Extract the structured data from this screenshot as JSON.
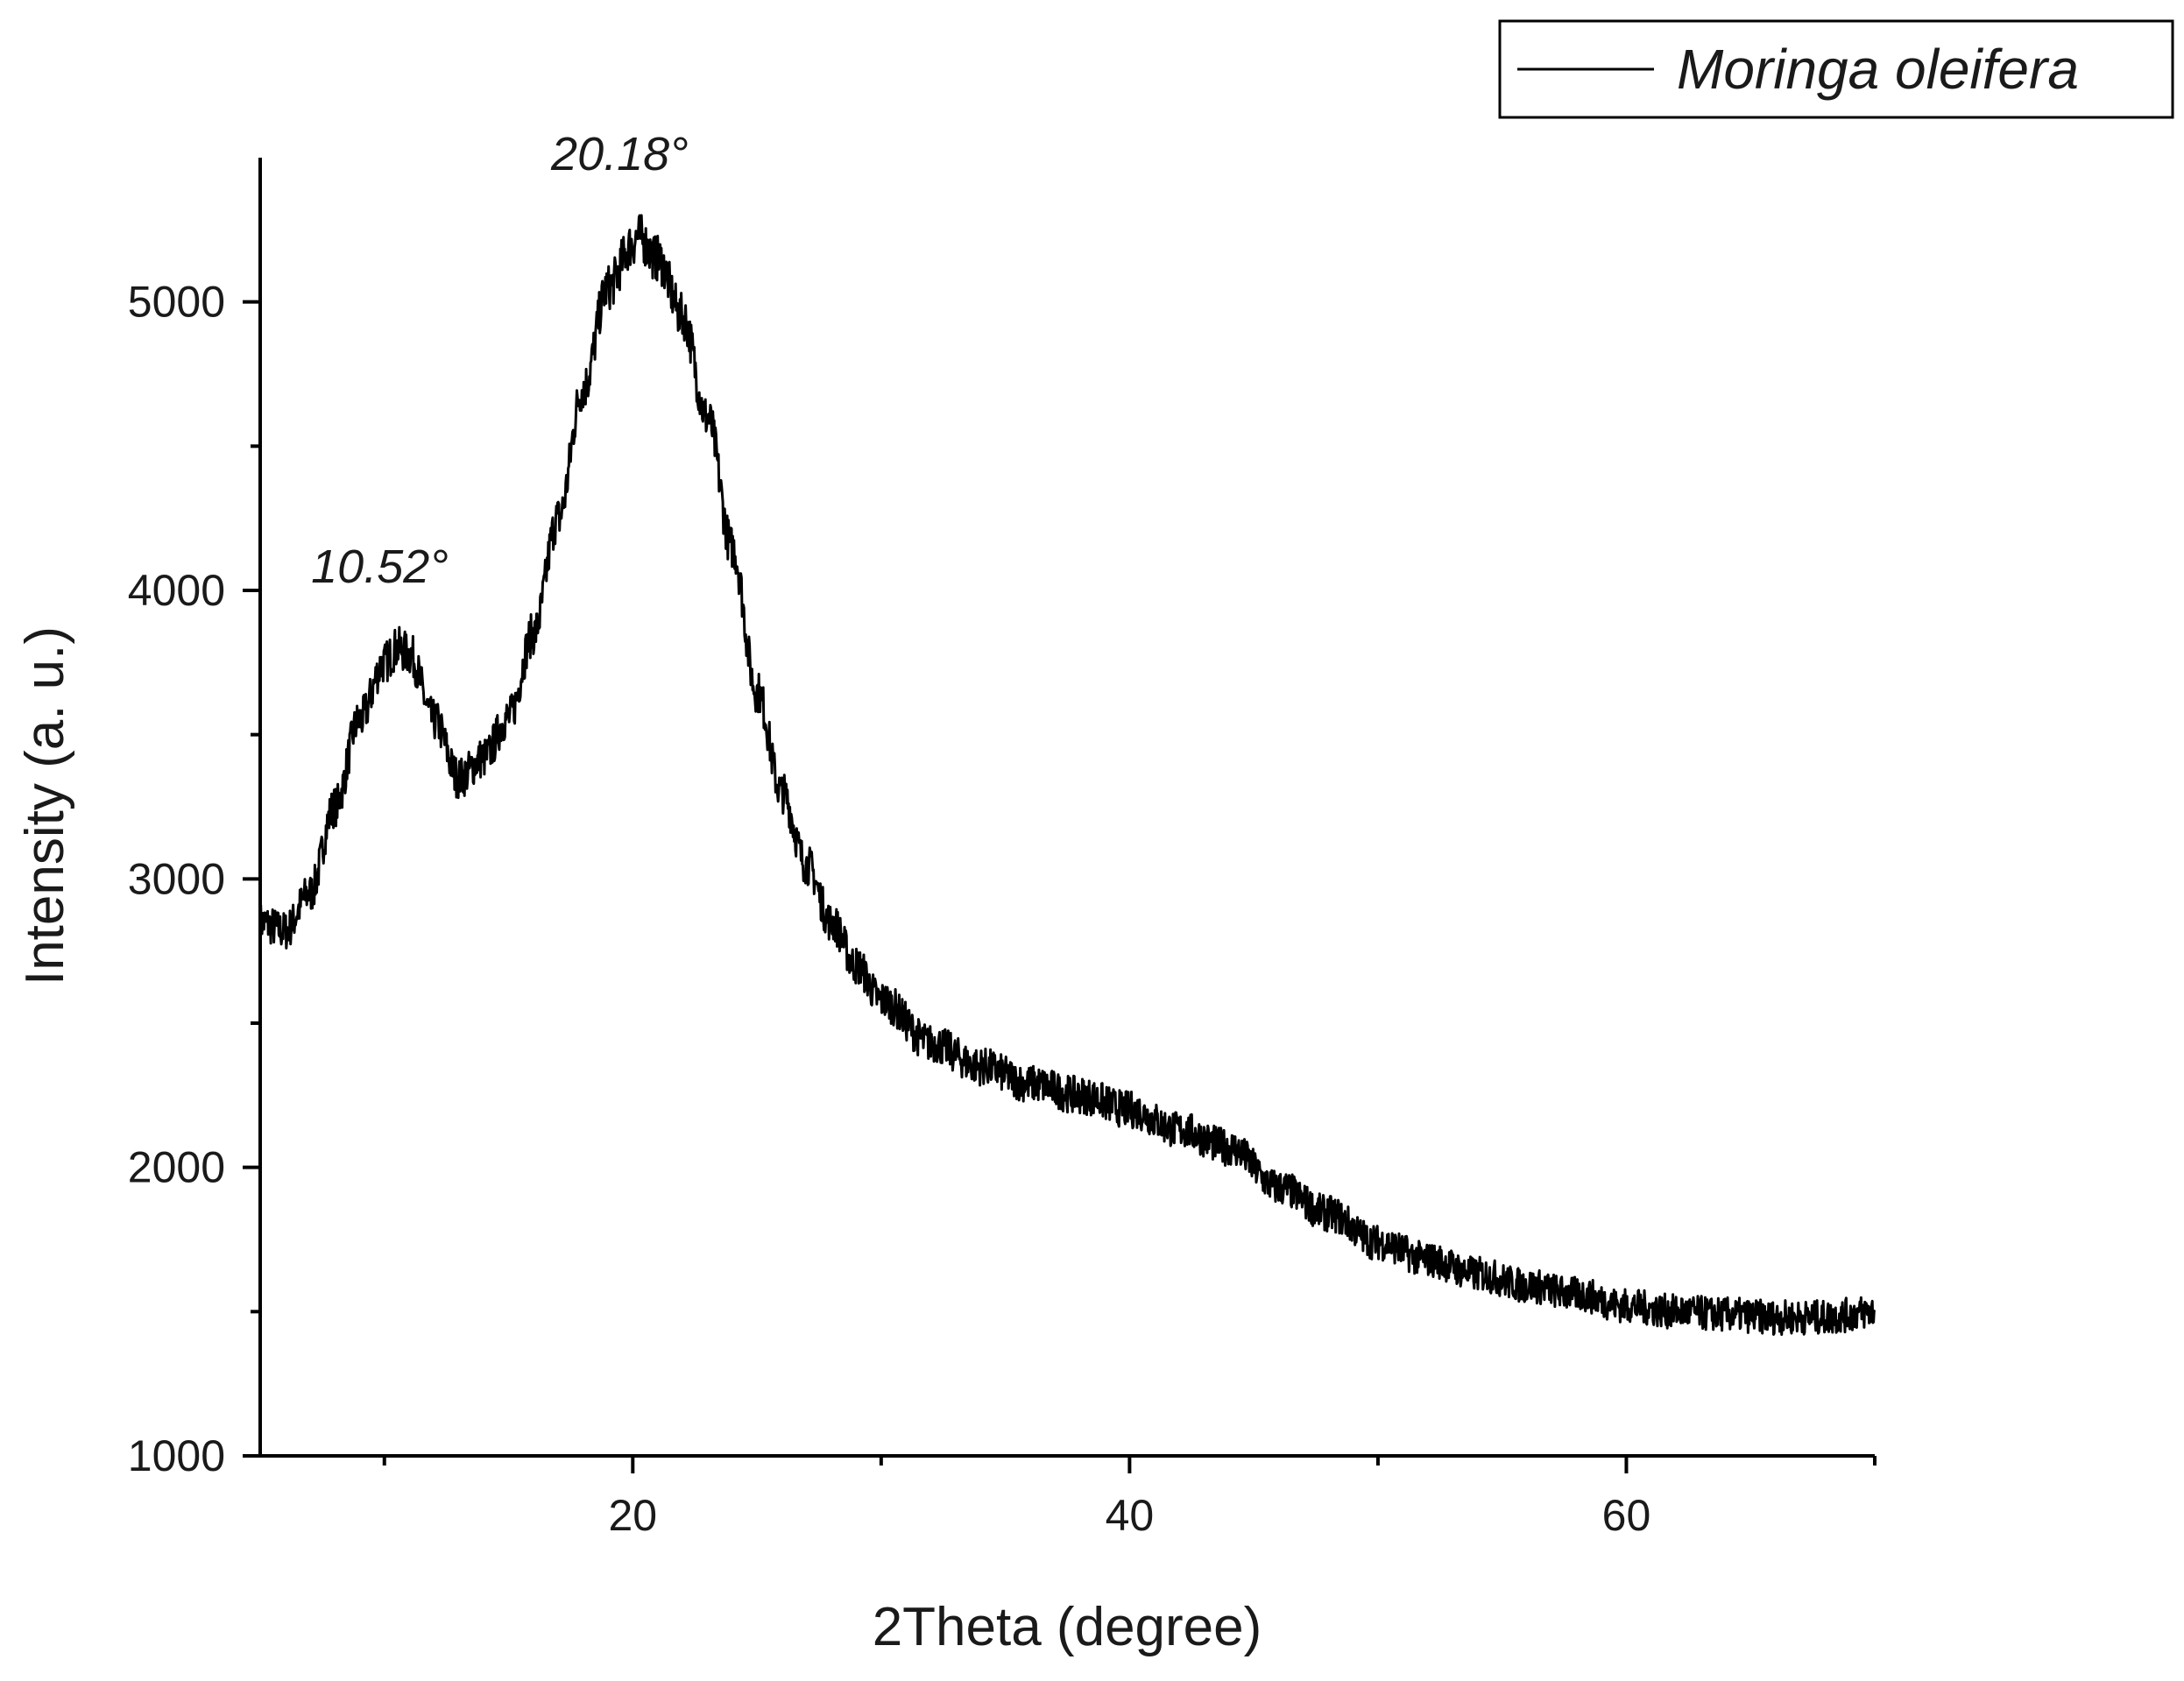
{
  "chart_data": {
    "type": "line",
    "xlabel": "2Theta (degree)",
    "ylabel": "Intensity (a. u.)",
    "xlim": [
      5,
      70
    ],
    "ylim": [
      1000,
      5500
    ],
    "x_ticks": [
      20,
      40,
      60
    ],
    "x_tick_labels": [
      "20",
      "40",
      "60"
    ],
    "x_minor_ticks": [
      10,
      30,
      50
    ],
    "y_ticks": [
      1000,
      2000,
      3000,
      4000,
      5000
    ],
    "y_tick_labels": [
      "1000",
      "2000",
      "3000",
      "4000",
      "5000"
    ],
    "y_minor_ticks": [
      1500,
      2500,
      3500,
      4500
    ],
    "grid": false,
    "legend_position": "top-right",
    "series": [
      {
        "name": "Moringa oleifera",
        "color": "#000000",
        "noise_amplitude": 70,
        "x": [
          5,
          6,
          7,
          8,
          9,
          10,
          10.52,
          11,
          12,
          13,
          14,
          15,
          16,
          17,
          18,
          19,
          20,
          20.18,
          21,
          22,
          23,
          24,
          25,
          26,
          27,
          28,
          29,
          30,
          32,
          34,
          36,
          38,
          40,
          42,
          44,
          46,
          48,
          50,
          52,
          54,
          56,
          58,
          60,
          62,
          64,
          66,
          68,
          70
        ],
        "y": [
          2850,
          2820,
          2950,
          3250,
          3550,
          3750,
          3800,
          3780,
          3550,
          3350,
          3420,
          3560,
          3850,
          4250,
          4700,
          5050,
          5200,
          5230,
          5150,
          4950,
          4600,
          4150,
          3650,
          3300,
          3050,
          2850,
          2700,
          2580,
          2430,
          2350,
          2290,
          2250,
          2200,
          2130,
          2070,
          1930,
          1840,
          1740,
          1680,
          1630,
          1590,
          1560,
          1520,
          1500,
          1490,
          1480,
          1480,
          1500
        ]
      }
    ],
    "annotations": [
      {
        "text": "10.52°",
        "x": 10.52,
        "y": 3800
      },
      {
        "text": "20.18°",
        "x": 20.18,
        "y": 5230
      }
    ]
  }
}
